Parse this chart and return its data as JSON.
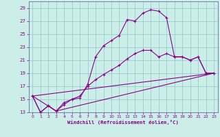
{
  "xlabel": "Windchill (Refroidissement éolien,°C)",
  "bg_color": "#cceee8",
  "grid_color": "#99cccc",
  "line_color": "#880088",
  "spine_color": "#6666aa",
  "xlim": [
    -0.5,
    23.5
  ],
  "ylim": [
    13,
    30
  ],
  "xticks": [
    0,
    1,
    2,
    3,
    4,
    5,
    6,
    7,
    8,
    9,
    10,
    11,
    12,
    13,
    14,
    15,
    16,
    17,
    18,
    19,
    20,
    21,
    22,
    23
  ],
  "yticks": [
    13,
    15,
    17,
    19,
    21,
    23,
    25,
    27,
    29
  ],
  "line2_x": [
    0,
    1,
    2,
    3,
    4,
    5,
    6,
    7,
    8,
    9,
    10,
    11,
    12,
    13,
    14,
    15,
    16,
    17,
    18,
    19,
    20,
    21,
    22,
    23
  ],
  "line2_y": [
    15.5,
    13.0,
    14.0,
    13.2,
    14.2,
    15.0,
    15.2,
    17.3,
    21.5,
    23.2,
    24.0,
    24.8,
    27.2,
    27.0,
    28.2,
    28.7,
    28.5,
    27.5,
    21.5,
    21.5,
    21.0,
    21.5,
    19.0,
    19.0
  ],
  "line3_x": [
    0,
    1,
    2,
    3,
    4,
    5,
    6,
    7,
    8,
    9,
    10,
    11,
    12,
    13,
    14,
    15,
    16,
    17,
    18,
    19,
    20,
    21,
    22,
    23
  ],
  "line3_y": [
    15.5,
    13.0,
    14.0,
    13.2,
    14.5,
    15.0,
    15.5,
    17.0,
    18.0,
    18.8,
    19.5,
    20.2,
    21.2,
    22.0,
    22.5,
    22.5,
    21.5,
    22.0,
    21.5,
    21.5,
    21.0,
    21.5,
    19.0,
    19.0
  ],
  "line4_x": [
    0,
    23
  ],
  "line4_y": [
    15.5,
    19.0
  ],
  "line5_x": [
    0,
    3,
    23
  ],
  "line5_y": [
    15.5,
    13.2,
    19.0
  ]
}
